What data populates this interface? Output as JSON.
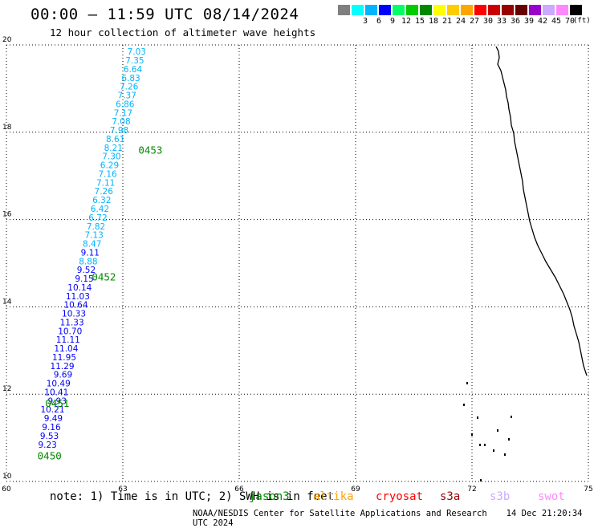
{
  "header": {
    "title": "00:00 – 11:59 UTC 08/14/2024",
    "subtitle": "12 hour collection of altimeter wave heights"
  },
  "legend": {
    "unit": "(ft)",
    "bins": [
      {
        "label": "",
        "color": "#7f7f7f"
      },
      {
        "label": "3",
        "color": "#00ffff"
      },
      {
        "label": "6",
        "color": "#00b4ff"
      },
      {
        "label": "9",
        "color": "#0000ff"
      },
      {
        "label": "12",
        "color": "#00ff66"
      },
      {
        "label": "15",
        "color": "#00cc00"
      },
      {
        "label": "18",
        "color": "#008800"
      },
      {
        "label": "21",
        "color": "#ffff00"
      },
      {
        "label": "24",
        "color": "#ffcc00"
      },
      {
        "label": "27",
        "color": "#ffa500"
      },
      {
        "label": "30",
        "color": "#ff0000"
      },
      {
        "label": "33",
        "color": "#cc0000"
      },
      {
        "label": "36",
        "color": "#990000"
      },
      {
        "label": "39",
        "color": "#660000"
      },
      {
        "label": "42",
        "color": "#9900cc"
      },
      {
        "label": "45",
        "color": "#ccaaff"
      },
      {
        "label": "70",
        "color": "#ff88ff"
      },
      {
        "label": "",
        "color": "#000000"
      }
    ]
  },
  "map": {
    "lon_range": [
      60,
      75
    ],
    "lat_range": [
      10,
      20
    ],
    "lon_ticks": [
      "60",
      "63",
      "66",
      "69",
      "72",
      "75"
    ],
    "lat_ticks": [
      "10",
      "12",
      "14",
      "16",
      "18",
      "20"
    ],
    "grid": "dotted",
    "coastline_color": "#000000"
  },
  "passes": [
    {
      "id": "0450",
      "lat": 10.6,
      "lon": 60.8
    },
    {
      "id": "0451",
      "lat": 11.8,
      "lon": 61.0
    },
    {
      "id": "0452",
      "lat": 14.7,
      "lon": 62.2
    },
    {
      "id": "0453",
      "lat": 17.6,
      "lon": 63.4
    }
  ],
  "pass_label_color": "#008800",
  "wave_heights": [
    {
      "lat": 19.85,
      "lon": 63.6,
      "h": "7.03"
    },
    {
      "lat": 19.65,
      "lon": 63.55,
      "h": "7.35"
    },
    {
      "lat": 19.45,
      "lon": 63.5,
      "h": "6.64"
    },
    {
      "lat": 19.25,
      "lon": 63.45,
      "h": "6.83"
    },
    {
      "lat": 19.05,
      "lon": 63.4,
      "h": "7.26"
    },
    {
      "lat": 18.85,
      "lon": 63.35,
      "h": "7.37"
    },
    {
      "lat": 18.65,
      "lon": 63.3,
      "h": "6.86"
    },
    {
      "lat": 18.45,
      "lon": 63.25,
      "h": "7.17"
    },
    {
      "lat": 18.25,
      "lon": 63.2,
      "h": "7.08"
    },
    {
      "lat": 18.05,
      "lon": 63.15,
      "h": "7.98"
    },
    {
      "lat": 17.85,
      "lon": 63.05,
      "h": "8.61"
    },
    {
      "lat": 17.65,
      "lon": 63.0,
      "h": "8.21"
    },
    {
      "lat": 17.45,
      "lon": 62.95,
      "h": "7.30"
    },
    {
      "lat": 17.25,
      "lon": 62.9,
      "h": "6.29"
    },
    {
      "lat": 17.05,
      "lon": 62.85,
      "h": "7.16"
    },
    {
      "lat": 16.85,
      "lon": 62.8,
      "h": "7.11"
    },
    {
      "lat": 16.65,
      "lon": 62.75,
      "h": "7.26"
    },
    {
      "lat": 16.45,
      "lon": 62.7,
      "h": "6.32"
    },
    {
      "lat": 16.25,
      "lon": 62.65,
      "h": "6.42"
    },
    {
      "lat": 16.05,
      "lon": 62.6,
      "h": "6.72"
    },
    {
      "lat": 15.85,
      "lon": 62.55,
      "h": "7.82"
    },
    {
      "lat": 15.65,
      "lon": 62.5,
      "h": "7.13"
    },
    {
      "lat": 15.45,
      "lon": 62.45,
      "h": "8.47"
    },
    {
      "lat": 15.25,
      "lon": 62.4,
      "h": "9.11"
    },
    {
      "lat": 15.05,
      "lon": 62.35,
      "h": "8.88"
    },
    {
      "lat": 14.85,
      "lon": 62.3,
      "h": "9.52"
    },
    {
      "lat": 14.65,
      "lon": 62.25,
      "h": "9.15"
    },
    {
      "lat": 14.45,
      "lon": 62.2,
      "h": "10.14"
    },
    {
      "lat": 14.25,
      "lon": 62.15,
      "h": "11.03"
    },
    {
      "lat": 14.05,
      "lon": 62.1,
      "h": "10.64"
    },
    {
      "lat": 13.85,
      "lon": 62.05,
      "h": "10.33"
    },
    {
      "lat": 13.65,
      "lon": 62.0,
      "h": "11.33"
    },
    {
      "lat": 13.45,
      "lon": 61.95,
      "h": "10.70"
    },
    {
      "lat": 13.25,
      "lon": 61.9,
      "h": "11.11"
    },
    {
      "lat": 13.05,
      "lon": 61.85,
      "h": "11.04"
    },
    {
      "lat": 12.85,
      "lon": 61.8,
      "h": "11.95"
    },
    {
      "lat": 12.65,
      "lon": 61.75,
      "h": "11.29"
    },
    {
      "lat": 12.45,
      "lon": 61.7,
      "h": "9.69"
    },
    {
      "lat": 12.25,
      "lon": 61.65,
      "h": "10.49"
    },
    {
      "lat": 12.05,
      "lon": 61.6,
      "h": "10.41"
    },
    {
      "lat": 11.85,
      "lon": 61.55,
      "h": "9.93"
    },
    {
      "lat": 11.65,
      "lon": 61.5,
      "h": "10.21"
    },
    {
      "lat": 11.45,
      "lon": 61.45,
      "h": "9.49"
    },
    {
      "lat": 11.25,
      "lon": 61.4,
      "h": "9.16"
    },
    {
      "lat": 11.05,
      "lon": 61.35,
      "h": "9.53"
    },
    {
      "lat": 10.85,
      "lon": 61.3,
      "h": "9.23"
    }
  ],
  "note": {
    "text": "note: 1) Time is in UTC; 2) SWH is in feet"
  },
  "missions": [
    {
      "name": "jason3",
      "color": "#008800"
    },
    {
      "name": "altika",
      "color": "#ffa500"
    },
    {
      "name": "cryosat",
      "color": "#ff0000"
    },
    {
      "name": "s3a",
      "color": "#990000"
    },
    {
      "name": "s3b",
      "color": "#ccaaff"
    },
    {
      "name": "swot",
      "color": "#ff88ff"
    }
  ],
  "footer": {
    "credit": "NOAA/NESDIS Center for Satellite Applications and Research",
    "generated": "14 Dec 21:20:34 UTC 2024"
  }
}
